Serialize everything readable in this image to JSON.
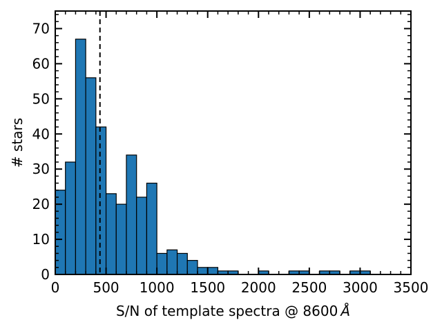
{
  "chart_data": {
    "type": "bar",
    "subtype": "histogram",
    "xlabel": "S/N of template spectra @ 8600",
    "xlabel_unit": "Å",
    "ylabel": "# stars",
    "xlim": [
      0,
      3500
    ],
    "ylim": [
      0,
      75
    ],
    "bin_width": 100,
    "bar_color": "#1f77b4",
    "edge_color": "#000000",
    "x_ticks": [
      0,
      500,
      1000,
      1500,
      2000,
      2500,
      3000,
      3500
    ],
    "x_tick_labels": [
      "0",
      "500",
      "1000",
      "1500",
      "2000",
      "2500",
      "3000",
      "3500"
    ],
    "y_ticks": [
      0,
      10,
      20,
      30,
      40,
      50,
      60,
      70
    ],
    "y_tick_labels": [
      "0",
      "10",
      "20",
      "30",
      "40",
      "50",
      "60",
      "70"
    ],
    "vline": {
      "x": 440,
      "style": "dashed",
      "color": "#000000"
    },
    "bins": [
      {
        "start": 0,
        "end": 100,
        "count": 24
      },
      {
        "start": 100,
        "end": 200,
        "count": 32
      },
      {
        "start": 200,
        "end": 300,
        "count": 67
      },
      {
        "start": 300,
        "end": 400,
        "count": 56
      },
      {
        "start": 400,
        "end": 500,
        "count": 42
      },
      {
        "start": 500,
        "end": 600,
        "count": 23
      },
      {
        "start": 600,
        "end": 700,
        "count": 20
      },
      {
        "start": 700,
        "end": 800,
        "count": 34
      },
      {
        "start": 800,
        "end": 900,
        "count": 22
      },
      {
        "start": 900,
        "end": 1000,
        "count": 26
      },
      {
        "start": 1000,
        "end": 1100,
        "count": 6
      },
      {
        "start": 1100,
        "end": 1200,
        "count": 7
      },
      {
        "start": 1200,
        "end": 1300,
        "count": 6
      },
      {
        "start": 1300,
        "end": 1400,
        "count": 4
      },
      {
        "start": 1400,
        "end": 1500,
        "count": 2
      },
      {
        "start": 1500,
        "end": 1600,
        "count": 2
      },
      {
        "start": 1600,
        "end": 1700,
        "count": 1
      },
      {
        "start": 1700,
        "end": 1800,
        "count": 1
      },
      {
        "start": 2000,
        "end": 2100,
        "count": 1
      },
      {
        "start": 2300,
        "end": 2400,
        "count": 1
      },
      {
        "start": 2400,
        "end": 2500,
        "count": 1
      },
      {
        "start": 2600,
        "end": 2700,
        "count": 1
      },
      {
        "start": 2700,
        "end": 2800,
        "count": 1
      },
      {
        "start": 2900,
        "end": 3000,
        "count": 1
      },
      {
        "start": 3000,
        "end": 3100,
        "count": 1
      }
    ]
  }
}
